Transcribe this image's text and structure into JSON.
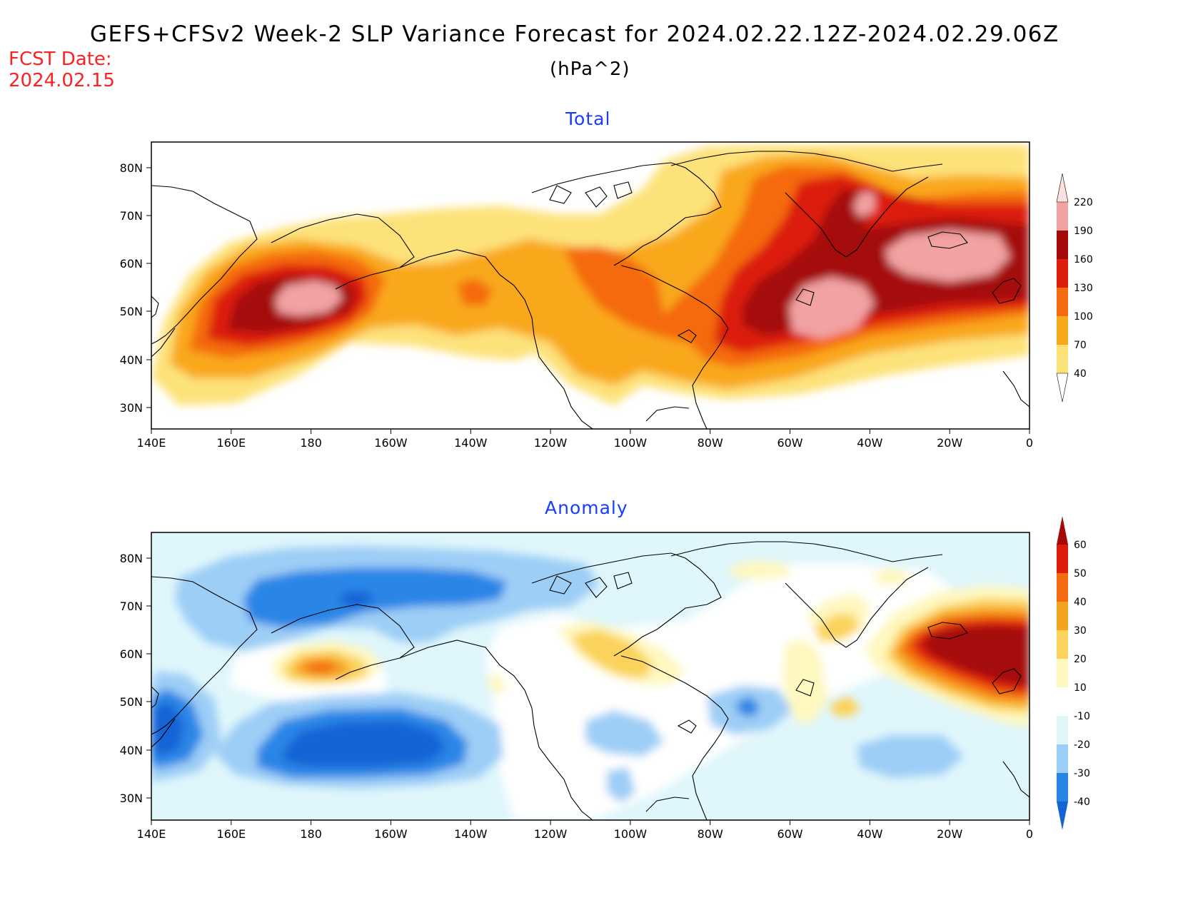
{
  "title": "GEFS+CFSv2 Week-2 SLP Variance Forecast for 2024.02.22.12Z-2024.02.29.06Z",
  "units": "(hPa^2)",
  "fcst_label": "FCST Date:",
  "fcst_date": "2024.02.15",
  "colors": {
    "total": [
      "#fde27a",
      "#f9a81b",
      "#f46a10",
      "#dc1e0c",
      "#a50a0a",
      "#f2a2a2",
      "#fde0e0"
    ],
    "anomaly": [
      "#1464d6",
      "#2a86e6",
      "#9dcef6",
      "#dff6fb",
      "#ffffff",
      "#fff8c0",
      "#fbd35c",
      "#f6a221",
      "#f46a10",
      "#dd1e0c",
      "#a50a0a"
    ]
  },
  "panels": [
    {
      "id": "total",
      "title": "Total",
      "x_ticks": [
        "140E",
        "160E",
        "180",
        "160W",
        "140W",
        "120W",
        "100W",
        "80W",
        "60W",
        "40W",
        "20W",
        "0"
      ],
      "y_ticks": [
        "80N",
        "70N",
        "60N",
        "50N",
        "40N",
        "30N"
      ],
      "colorbar_labels": [
        "220",
        "190",
        "160",
        "130",
        "100",
        "70",
        "40"
      ]
    },
    {
      "id": "anomaly",
      "title": "Anomaly",
      "x_ticks": [
        "140E",
        "160E",
        "180",
        "160W",
        "140W",
        "120W",
        "100W",
        "80W",
        "60W",
        "40W",
        "20W",
        "0"
      ],
      "y_ticks": [
        "80N",
        "70N",
        "60N",
        "50N",
        "40N",
        "30N"
      ],
      "colorbar_labels": [
        "60",
        "50",
        "40",
        "30",
        "20",
        "10",
        "-10",
        "-20",
        "-30",
        "-40"
      ]
    }
  ]
}
